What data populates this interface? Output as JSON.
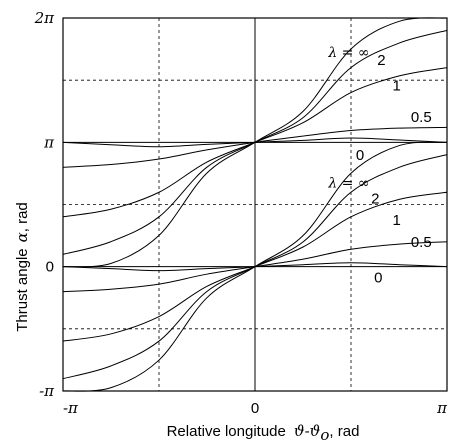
{
  "chart_data": {
    "type": "line",
    "title": "",
    "xlabel": "Relative longitude",
    "xlabel_symbol": "ϑ-ϑ",
    "xlabel_subscript": "o",
    "xlabel_unit": ", rad",
    "ylabel": "Thrust angle",
    "ylabel_symbol": "α",
    "ylabel_unit": ", rad",
    "xlim": [
      -3.14159,
      3.14159
    ],
    "ylim": [
      -3.14159,
      6.28319
    ],
    "x_tick_labels": [
      "-π",
      "0",
      "π"
    ],
    "y_tick_labels": [
      "-π",
      "0",
      "π",
      "2π"
    ],
    "grid": "dashed at ±π/2 and odd multiples of π/2; solid at α = 0 and α = π",
    "series": [
      {
        "name": "λ = ∞",
        "branch": "upper",
        "x": [
          -3.14159,
          -2.36,
          -1.57,
          -0.79,
          0,
          0.79,
          1.57,
          2.36,
          3.14159
        ],
        "y": [
          0,
          0.08,
          0.79,
          2.36,
          3.14159,
          3.93,
          5.5,
          6.2,
          6.28319
        ]
      },
      {
        "name": "2",
        "branch": "upper",
        "x": [
          -3.14159,
          -2.36,
          -1.57,
          -0.79,
          0,
          0.79,
          1.57,
          2.36,
          3.14159
        ],
        "y": [
          0.31,
          0.63,
          1.26,
          2.51,
          3.14159,
          3.77,
          5.03,
          5.65,
          5.97
        ]
      },
      {
        "name": "1",
        "branch": "upper",
        "x": [
          -3.14159,
          -2.36,
          -1.57,
          -0.79,
          0,
          0.79,
          1.57,
          2.36,
          3.14159
        ],
        "y": [
          1.26,
          1.45,
          1.88,
          2.64,
          3.14159,
          3.64,
          4.4,
          4.82,
          5.03
        ]
      },
      {
        "name": "0.5",
        "branch": "upper",
        "x": [
          -3.14159,
          -2.36,
          -1.57,
          -0.79,
          0,
          0.79,
          1.57,
          2.36,
          3.14159
        ],
        "y": [
          2.51,
          2.58,
          2.72,
          2.95,
          3.14159,
          3.3,
          3.44,
          3.5,
          3.52
        ]
      },
      {
        "name": "0",
        "branch": "upper",
        "x": [
          -3.14159,
          -2.36,
          -1.57,
          -0.79,
          0,
          0.79,
          1.57,
          2.36,
          3.14159
        ],
        "y": [
          3.14159,
          3.08,
          3.03,
          3.09,
          3.14159,
          3.19,
          3.25,
          3.2,
          3.14159
        ]
      },
      {
        "name": "λ = ∞",
        "branch": "lower",
        "x": [
          -3.14159,
          -2.36,
          -1.57,
          -0.79,
          0,
          0.79,
          1.57,
          2.36,
          3.14159
        ],
        "y": [
          -3.14159,
          -3.06,
          -2.36,
          -0.79,
          0,
          0.79,
          2.36,
          3.06,
          3.14159
        ]
      },
      {
        "name": "2",
        "branch": "lower",
        "x": [
          -3.14159,
          -2.36,
          -1.57,
          -0.79,
          0,
          0.79,
          1.57,
          2.36,
          3.14159
        ],
        "y": [
          -2.83,
          -2.51,
          -1.88,
          -0.63,
          0,
          0.63,
          1.88,
          2.51,
          2.83
        ]
      },
      {
        "name": "1",
        "branch": "lower",
        "x": [
          -3.14159,
          -2.36,
          -1.57,
          -0.79,
          0,
          0.79,
          1.57,
          2.36,
          3.14159
        ],
        "y": [
          -1.88,
          -1.7,
          -1.26,
          -0.5,
          0,
          0.5,
          1.26,
          1.7,
          1.88
        ]
      },
      {
        "name": "0.5",
        "branch": "lower",
        "x": [
          -3.14159,
          -2.36,
          -1.57,
          -0.79,
          0,
          0.79,
          1.57,
          2.36,
          3.14159
        ],
        "y": [
          -0.63,
          -0.57,
          -0.44,
          -0.19,
          0,
          0.19,
          0.44,
          0.57,
          0.63
        ]
      },
      {
        "name": "0",
        "branch": "lower",
        "x": [
          -3.14159,
          -2.36,
          -1.57,
          -0.79,
          0,
          0.79,
          1.57,
          2.36,
          3.14159
        ],
        "y": [
          0,
          -0.05,
          -0.1,
          -0.05,
          0,
          0.05,
          0.1,
          0.05,
          0
        ]
      }
    ],
    "annotations": [
      {
        "text": "λ = ∞",
        "x": 1.2,
        "y": 5.3
      },
      {
        "text": "2",
        "x": 2.0,
        "y": 5.1
      },
      {
        "text": "1",
        "x": 2.25,
        "y": 4.45
      },
      {
        "text": "0.5",
        "x": 2.55,
        "y": 3.65
      },
      {
        "text": "0",
        "x": 1.65,
        "y": 2.7
      },
      {
        "text": "λ = ∞",
        "x": 1.2,
        "y": 2.0
      },
      {
        "text": "2",
        "x": 1.9,
        "y": 1.6
      },
      {
        "text": "1",
        "x": 2.25,
        "y": 1.05
      },
      {
        "text": "0.5",
        "x": 2.55,
        "y": 0.5
      },
      {
        "text": "0",
        "x": 1.95,
        "y": -0.4
      }
    ]
  }
}
